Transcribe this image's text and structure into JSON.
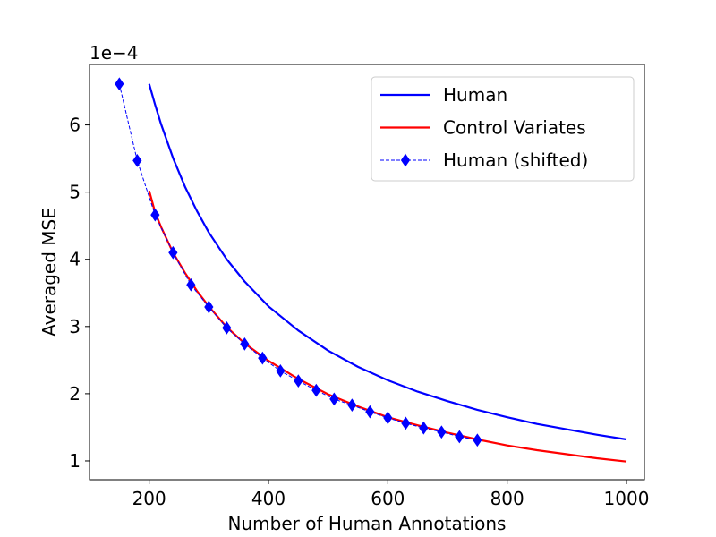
{
  "chart_data": {
    "type": "line",
    "xlabel": "Number of Human Annotations",
    "ylabel": "Averaged MSE",
    "y_scale_label": "1e−4",
    "xlim": [
      100,
      1030
    ],
    "ylim": [
      0.72,
      6.9
    ],
    "x_ticks": [
      200,
      400,
      600,
      800,
      1000
    ],
    "x_tick_labels": [
      "200",
      "400",
      "600",
      "800",
      "1000"
    ],
    "y_ticks": [
      1,
      2,
      3,
      4,
      5,
      6
    ],
    "y_tick_labels": [
      "1",
      "2",
      "3",
      "4",
      "5",
      "6"
    ],
    "grid": false,
    "legend_position": "top-right",
    "series": [
      {
        "name": "Human",
        "color": "#0000ff",
        "style": "solid",
        "x": [
          200,
          210,
          220,
          240,
          260,
          280,
          300,
          330,
          360,
          400,
          450,
          500,
          550,
          600,
          650,
          700,
          750,
          800,
          850,
          900,
          950,
          1000
        ],
        "values": [
          6.61,
          6.3,
          6.01,
          5.51,
          5.08,
          4.72,
          4.4,
          4.0,
          3.67,
          3.3,
          2.94,
          2.64,
          2.4,
          2.2,
          2.03,
          1.89,
          1.76,
          1.65,
          1.55,
          1.47,
          1.39,
          1.32
        ]
      },
      {
        "name": "Control Variates",
        "color": "#ff0000",
        "style": "solid",
        "x": [
          200,
          210,
          220,
          240,
          260,
          280,
          300,
          330,
          360,
          400,
          450,
          500,
          550,
          600,
          650,
          700,
          750,
          800,
          850,
          900,
          950,
          1000
        ],
        "values": [
          5.02,
          4.7,
          4.48,
          4.1,
          3.8,
          3.53,
          3.3,
          2.99,
          2.75,
          2.49,
          2.22,
          1.99,
          1.81,
          1.65,
          1.53,
          1.42,
          1.32,
          1.23,
          1.16,
          1.1,
          1.04,
          0.99
        ]
      },
      {
        "name": "Human (shifted)",
        "color": "#0000ff",
        "style": "dashed",
        "marker": "diamond",
        "x": [
          150,
          180,
          210,
          240,
          270,
          300,
          330,
          360,
          390,
          420,
          450,
          480,
          510,
          540,
          570,
          600,
          630,
          660,
          690,
          720,
          750
        ],
        "values": [
          6.61,
          5.47,
          4.66,
          4.1,
          3.62,
          3.29,
          2.98,
          2.74,
          2.53,
          2.34,
          2.19,
          2.05,
          1.92,
          1.83,
          1.73,
          1.64,
          1.56,
          1.49,
          1.43,
          1.36,
          1.31
        ]
      }
    ]
  }
}
